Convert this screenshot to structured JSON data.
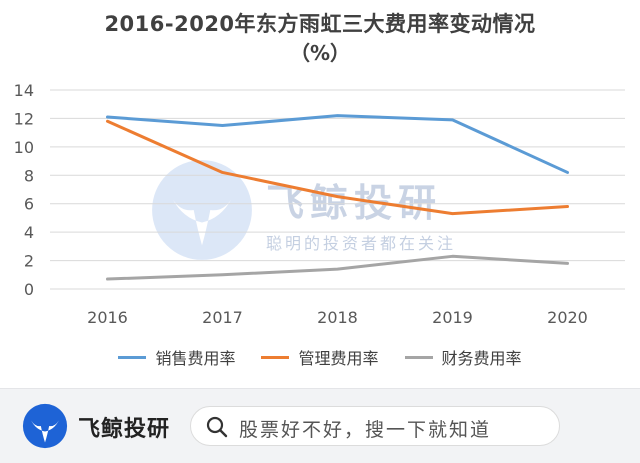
{
  "chart_data": {
    "type": "line",
    "title_line1": "2016-2020年东方雨虹三大费用率变动情况",
    "title_line2": "（%）",
    "categories": [
      "2016",
      "2017",
      "2018",
      "2019",
      "2020"
    ],
    "ylim": [
      0,
      14
    ],
    "yticks": [
      0,
      2,
      4,
      6,
      8,
      10,
      12,
      14
    ],
    "grid": "horizontal",
    "legend_position": "bottom",
    "series": [
      {
        "name": "销售费用率",
        "color": "#5b9bd5",
        "values": [
          12.1,
          11.5,
          12.2,
          11.9,
          8.2
        ]
      },
      {
        "name": "管理费用率",
        "color": "#ed7d31",
        "values": [
          11.8,
          8.2,
          6.5,
          5.3,
          5.8
        ]
      },
      {
        "name": "财务费用率",
        "color": "#a5a5a5",
        "values": [
          0.7,
          1.0,
          1.4,
          2.3,
          1.8
        ]
      }
    ]
  },
  "watermark": {
    "title": "飞鲸投研",
    "subtitle": "聪明的投资者都在关注"
  },
  "bottom_bar": {
    "brand_name": "飞鲸投研",
    "search_text": "股票好不好，搜一下就知道"
  }
}
